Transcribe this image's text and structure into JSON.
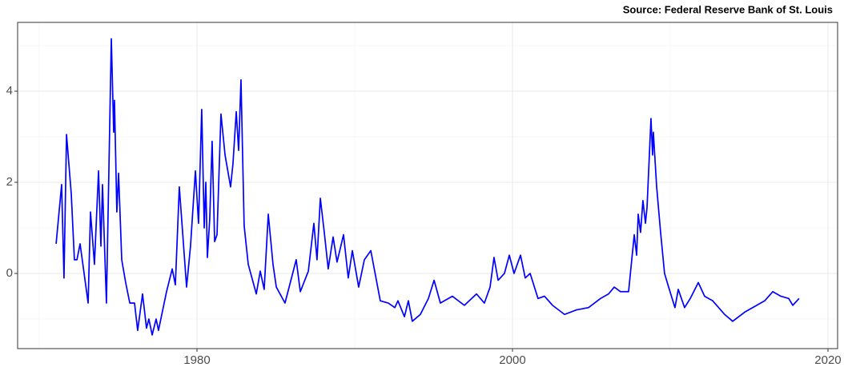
{
  "chart_data": {
    "type": "line",
    "title": "Source: Federal Reserve Bank of St. Louis",
    "x": [
      1971.07,
      1971.42,
      1971.57,
      1971.73,
      1972.03,
      1972.23,
      1972.39,
      1972.59,
      1973.1,
      1973.25,
      1973.5,
      1973.76,
      1973.91,
      1974.01,
      1974.26,
      1974.57,
      1974.72,
      1974.77,
      1974.92,
      1975.03,
      1975.23,
      1975.48,
      1975.74,
      1976.04,
      1976.24,
      1976.55,
      1976.8,
      1976.95,
      1977.16,
      1977.41,
      1977.56,
      1978.07,
      1978.43,
      1978.63,
      1978.88,
      1979.09,
      1979.34,
      1979.59,
      1979.9,
      1980.1,
      1980.3,
      1980.46,
      1980.56,
      1980.66,
      1980.81,
      1980.96,
      1981.12,
      1981.27,
      1981.52,
      1981.78,
      1982.13,
      1982.28,
      1982.49,
      1982.64,
      1982.79,
      1982.99,
      1983.25,
      1983.76,
      1984.01,
      1984.26,
      1984.52,
      1984.82,
      1985.03,
      1985.58,
      1986.29,
      1986.55,
      1987.06,
      1987.41,
      1987.61,
      1987.82,
      1988.07,
      1988.32,
      1988.63,
      1988.88,
      1989.29,
      1989.59,
      1989.85,
      1990.25,
      1990.61,
      1991.02,
      1991.62,
      1992.13,
      1992.54,
      1992.74,
      1993.15,
      1993.4,
      1993.65,
      1994.16,
      1994.67,
      1995.03,
      1995.43,
      1996.19,
      1996.95,
      1997.72,
      1998.22,
      1998.58,
      1998.83,
      1999.09,
      1999.49,
      1999.8,
      2000.1,
      2000.51,
      2000.81,
      2001.12,
      2001.62,
      2002.03,
      2002.54,
      2003.3,
      2004.06,
      2004.82,
      2005.58,
      2006.09,
      2006.45,
      2006.85,
      2007.36,
      2007.72,
      2007.87,
      2007.97,
      2008.12,
      2008.27,
      2008.43,
      2008.53,
      2008.78,
      2008.88,
      2008.93,
      2009.14,
      2009.39,
      2009.64,
      2009.9,
      2010.3,
      2010.51,
      2010.91,
      2011.27,
      2011.78,
      2012.18,
      2012.69,
      2013.45,
      2013.96,
      2014.72,
      2015.48,
      2015.99,
      2016.5,
      2017.01,
      2017.51,
      2017.77,
      2018.17
    ],
    "series": [
      {
        "color": "#0000ff",
        "values": [
          0.65,
          1.95,
          -0.1,
          3.05,
          1.75,
          0.3,
          0.3,
          0.65,
          -0.65,
          1.35,
          0.2,
          2.25,
          0.6,
          1.95,
          -0.65,
          5.15,
          3.1,
          3.8,
          1.35,
          2.2,
          0.3,
          -0.2,
          -0.65,
          -0.65,
          -1.25,
          -0.45,
          -1.2,
          -1.0,
          -1.35,
          -1.0,
          -1.25,
          -0.4,
          0.1,
          -0.25,
          1.9,
          0.9,
          -0.3,
          0.6,
          2.25,
          1.1,
          3.6,
          1.0,
          2.0,
          0.35,
          1.2,
          2.9,
          0.7,
          0.85,
          3.5,
          2.6,
          1.9,
          2.4,
          3.55,
          2.7,
          4.25,
          1.05,
          0.2,
          -0.45,
          0.05,
          -0.35,
          1.3,
          0.2,
          -0.3,
          -0.65,
          0.3,
          -0.4,
          0.05,
          1.1,
          0.3,
          1.65,
          0.9,
          0.1,
          0.8,
          0.25,
          0.85,
          -0.1,
          0.5,
          -0.3,
          0.3,
          0.5,
          -0.6,
          -0.65,
          -0.75,
          -0.6,
          -0.95,
          -0.6,
          -1.05,
          -0.9,
          -0.55,
          -0.15,
          -0.65,
          -0.5,
          -0.7,
          -0.45,
          -0.65,
          -0.3,
          0.35,
          -0.15,
          0.0,
          0.4,
          0.0,
          0.4,
          -0.1,
          0.0,
          -0.55,
          -0.5,
          -0.7,
          -0.9,
          -0.8,
          -0.75,
          -0.55,
          -0.45,
          -0.3,
          -0.4,
          -0.4,
          0.85,
          0.4,
          1.3,
          0.9,
          1.6,
          1.1,
          1.45,
          3.4,
          2.6,
          3.1,
          1.9,
          0.9,
          0.0,
          -0.3,
          -0.75,
          -0.35,
          -0.75,
          -0.55,
          -0.2,
          -0.5,
          -0.6,
          -0.9,
          -1.05,
          -0.85,
          -0.7,
          -0.6,
          -0.4,
          -0.5,
          -0.55,
          -0.7,
          -0.55
        ]
      }
    ],
    "xlim": [
      1968.63,
      2020.61
    ],
    "xticks": [
      1980,
      2000,
      2020
    ],
    "xminor": [
      1970,
      1990,
      2010
    ],
    "ylim": [
      -1.65,
      5.51
    ],
    "yticks": [
      0,
      2,
      4
    ],
    "yminor": [
      -1,
      1,
      3,
      5
    ],
    "grid": true
  }
}
